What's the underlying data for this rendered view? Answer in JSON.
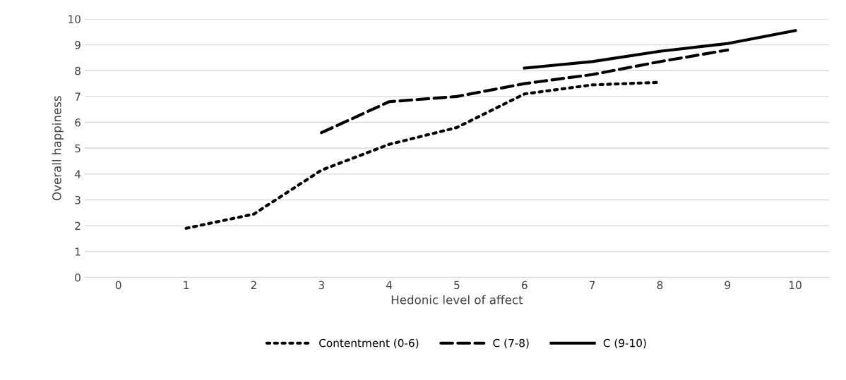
{
  "chart_data": {
    "type": "line",
    "xlabel": "Hedonic level of affect",
    "ylabel": "Overall happiness",
    "categories": [
      "0",
      "1",
      "2",
      "3",
      "4",
      "5",
      "6",
      "7",
      "8",
      "9",
      "10"
    ],
    "series": [
      {
        "name": "Contentment (0-6)",
        "color": "#000000",
        "line_style": "dotted",
        "values": [
          null,
          1.9,
          2.45,
          4.15,
          5.15,
          5.8,
          7.1,
          7.45,
          7.55,
          null,
          null
        ]
      },
      {
        "name": "C (7-8)",
        "color": "#000000",
        "line_style": "dashed",
        "values": [
          null,
          null,
          null,
          5.6,
          6.8,
          7.0,
          7.5,
          7.85,
          8.35,
          8.8,
          null
        ]
      },
      {
        "name": "C (9-10)",
        "color": "#000000",
        "line_style": "solid",
        "values": [
          null,
          null,
          null,
          null,
          null,
          null,
          8.1,
          8.35,
          8.75,
          9.05,
          9.55
        ]
      }
    ],
    "ylim": [
      0,
      10
    ],
    "yticks": [
      0,
      1,
      2,
      3,
      4,
      5,
      6,
      7,
      8,
      9,
      10
    ],
    "grid": "y",
    "legend": "bottom",
    "marker": "none"
  }
}
